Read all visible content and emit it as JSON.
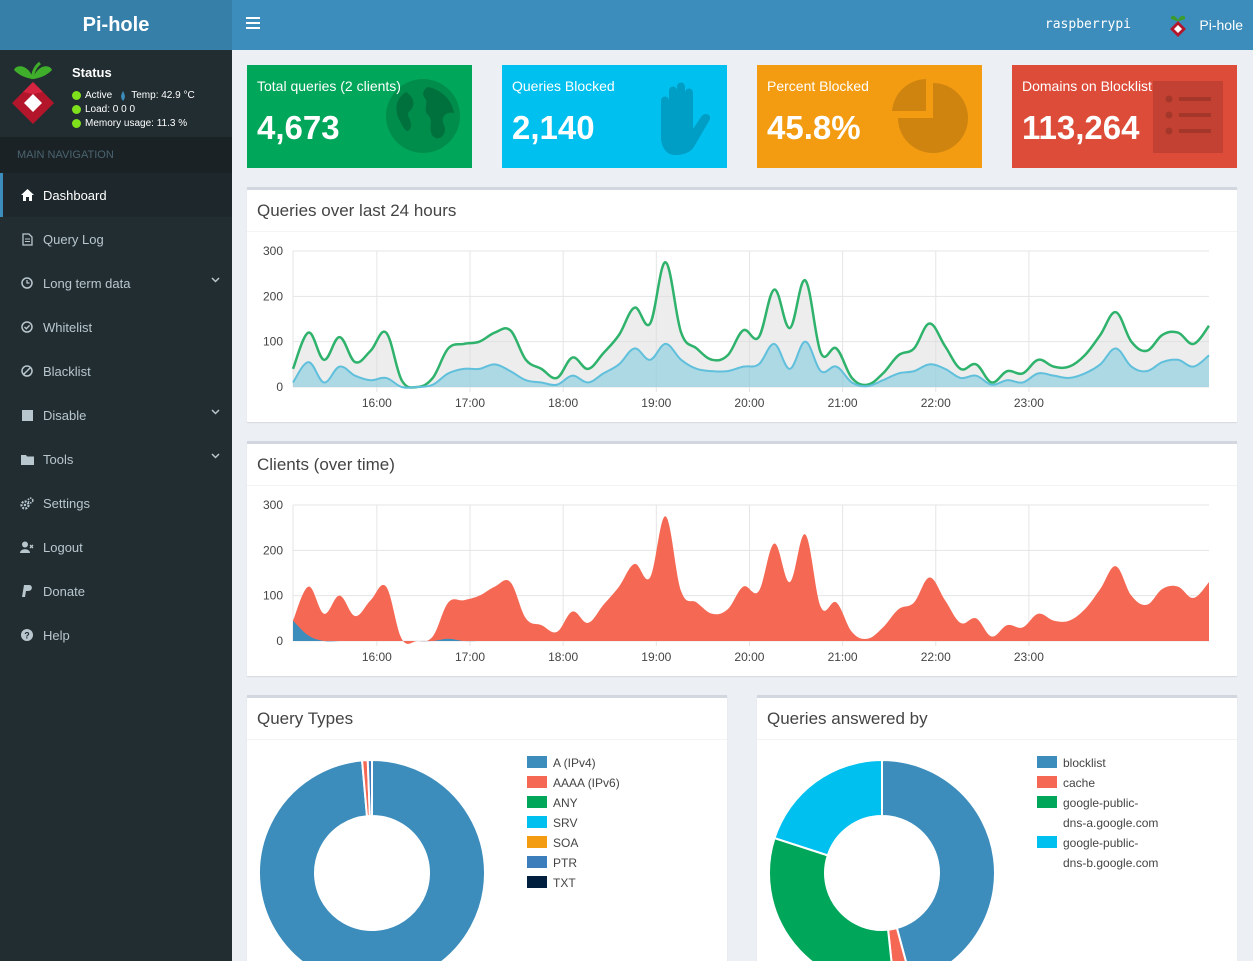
{
  "header": {
    "brand": "Pi-hole",
    "hostname": "raspberrypi",
    "user_label": "Pi-hole"
  },
  "sidebar": {
    "status": {
      "title": "Status",
      "active": "Active",
      "temp": "Temp: 42.9 °C",
      "load": "Load:  0  0  0",
      "memory": "Memory usage:  11.3 %"
    },
    "nav_header": "MAIN NAVIGATION",
    "items": [
      {
        "label": "Dashboard",
        "icon": "home-icon",
        "active": true
      },
      {
        "label": "Query Log",
        "icon": "file-icon"
      },
      {
        "label": "Long term data",
        "icon": "clock-icon",
        "has_submenu": true
      },
      {
        "label": "Whitelist",
        "icon": "check-circle-icon"
      },
      {
        "label": "Blacklist",
        "icon": "ban-icon"
      },
      {
        "label": "Disable",
        "icon": "stop-icon",
        "has_submenu": true
      },
      {
        "label": "Tools",
        "icon": "folder-icon",
        "has_submenu": true
      },
      {
        "label": "Settings",
        "icon": "gears-icon"
      },
      {
        "label": "Logout",
        "icon": "user-times-icon"
      },
      {
        "label": "Donate",
        "icon": "paypal-icon"
      },
      {
        "label": "Help",
        "icon": "question-circle-icon"
      }
    ]
  },
  "stats": [
    {
      "label": "Total queries (2 clients)",
      "value": "4,673",
      "color": "#00a65a",
      "icon": "globe-icon"
    },
    {
      "label": "Queries Blocked",
      "value": "2,140",
      "color": "#00c0ef",
      "icon": "hand-icon"
    },
    {
      "label": "Percent Blocked",
      "value": "45.8%",
      "color": "#f39c12",
      "icon": "pie-chart-icon"
    },
    {
      "label": "Domains on Blocklist",
      "value": "113,264",
      "color": "#dd4b39",
      "icon": "list-icon"
    }
  ],
  "boxes": {
    "queries_title": "Queries over last 24 hours",
    "clients_title": "Clients (over time)",
    "types_title": "Query Types",
    "answered_title": "Queries answered by"
  },
  "chart_data": [
    {
      "type": "area",
      "title": "Queries over last 24 hours",
      "ylim": [
        0,
        300
      ],
      "y_ticks": [
        0,
        100,
        200,
        300
      ],
      "x_ticks": [
        "16:00",
        "17:00",
        "18:00",
        "19:00",
        "20:00",
        "21:00",
        "22:00",
        "23:00"
      ],
      "x_start_hour": 15.1,
      "x_step_minutes": 10,
      "series": [
        {
          "color": "#2fb36c",
          "fill": "rgba(220,220,220,0.5)",
          "values": [
            40,
            120,
            60,
            110,
            55,
            80,
            120,
            15,
            0,
            20,
            85,
            95,
            100,
            120,
            125,
            60,
            40,
            20,
            65,
            40,
            75,
            115,
            175,
            140,
            275,
            120,
            85,
            60,
            70,
            125,
            110,
            215,
            130,
            235,
            75,
            85,
            20,
            5,
            30,
            70,
            85,
            140,
            90,
            40,
            50,
            10,
            35,
            30,
            60,
            45,
            45,
            70,
            115,
            165,
            100,
            80,
            115,
            120,
            95,
            135
          ]
        },
        {
          "color": "#60c0dc",
          "fill": "rgba(96,192,220,0.45)",
          "values": [
            10,
            55,
            10,
            45,
            25,
            15,
            20,
            0,
            0,
            5,
            30,
            40,
            40,
            50,
            35,
            15,
            10,
            5,
            25,
            10,
            30,
            50,
            85,
            60,
            95,
            60,
            40,
            35,
            35,
            45,
            50,
            95,
            40,
            100,
            35,
            45,
            10,
            2,
            15,
            30,
            35,
            50,
            40,
            20,
            25,
            5,
            15,
            10,
            30,
            25,
            20,
            30,
            50,
            85,
            45,
            35,
            55,
            60,
            45,
            70
          ]
        }
      ]
    },
    {
      "type": "area",
      "title": "Clients (over time)",
      "ylim": [
        0,
        300
      ],
      "y_ticks": [
        0,
        100,
        200,
        300
      ],
      "x_ticks": [
        "16:00",
        "17:00",
        "18:00",
        "19:00",
        "20:00",
        "21:00",
        "22:00",
        "23:00"
      ],
      "x_start_hour": 15.1,
      "x_step_minutes": 10,
      "series": [
        {
          "name": "",
          "color": "#f56954",
          "values": [
            45,
            120,
            60,
            100,
            55,
            90,
            120,
            5,
            0,
            10,
            85,
            90,
            100,
            120,
            130,
            50,
            35,
            20,
            65,
            40,
            80,
            120,
            170,
            140,
            275,
            110,
            85,
            60,
            70,
            120,
            110,
            215,
            130,
            235,
            75,
            85,
            20,
            5,
            30,
            70,
            85,
            140,
            90,
            40,
            50,
            10,
            35,
            30,
            60,
            45,
            45,
            70,
            115,
            165,
            100,
            80,
            115,
            120,
            95,
            130
          ]
        },
        {
          "name": "",
          "color": "#3c8dbc",
          "values": [
            45,
            12,
            0,
            0,
            0,
            0,
            0,
            0,
            0,
            0,
            5,
            0,
            0,
            0,
            0,
            0,
            0,
            0,
            0,
            0,
            0,
            0,
            0,
            0,
            0,
            0,
            0,
            0,
            0,
            0,
            0,
            0,
            0,
            0,
            0,
            0,
            0,
            0,
            0,
            0,
            0,
            0,
            0,
            0,
            0,
            0,
            0,
            0,
            0,
            0,
            0,
            0,
            0,
            0,
            0,
            0,
            0,
            0,
            0,
            0
          ]
        }
      ]
    },
    {
      "type": "pie",
      "title": "Query Types",
      "categories": [
        "A (IPv4)",
        "AAAA (IPv6)",
        "ANY",
        "SRV",
        "SOA",
        "PTR",
        "TXT"
      ],
      "values": [
        98.6,
        0.8,
        0,
        0,
        0,
        0.6,
        0
      ],
      "colors": [
        "#3c8dbc",
        "#f56954",
        "#00a65a",
        "#00c0ef",
        "#f39c12",
        "#3c7dbc",
        "#001f3f"
      ]
    },
    {
      "type": "pie",
      "title": "Queries answered by",
      "categories": [
        "blocklist",
        "cache",
        "google-public-dns-a.google.com",
        "google-public-dns-b.google.com"
      ],
      "legend_labels": [
        "blocklist",
        "cache",
        "google-public-",
        "dns-a.google.com",
        "google-public-",
        "dns-b.google.com"
      ],
      "values": [
        45.8,
        2.5,
        31.7,
        20.0
      ],
      "colors": [
        "#3c8dbc",
        "#f56954",
        "#00a65a",
        "#00c0ef"
      ]
    }
  ]
}
